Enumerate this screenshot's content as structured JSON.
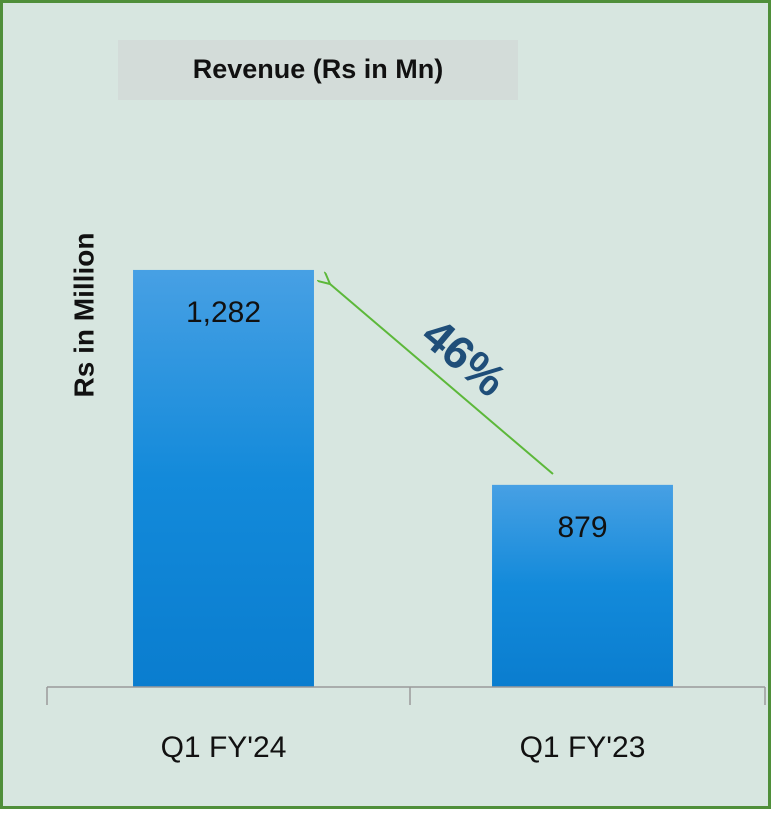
{
  "chart_data": {
    "type": "bar",
    "title": "Revenue (Rs in Mn)",
    "y_label": "Rs in Million",
    "categories": [
      "Q1 FY'24",
      "Q1 FY'23"
    ],
    "values": [
      1282,
      879
    ],
    "value_labels": [
      "1,282",
      "879"
    ],
    "color": "#1a8ad8",
    "ylim": [
      500,
      1400
    ],
    "annotation": "46%"
  }
}
